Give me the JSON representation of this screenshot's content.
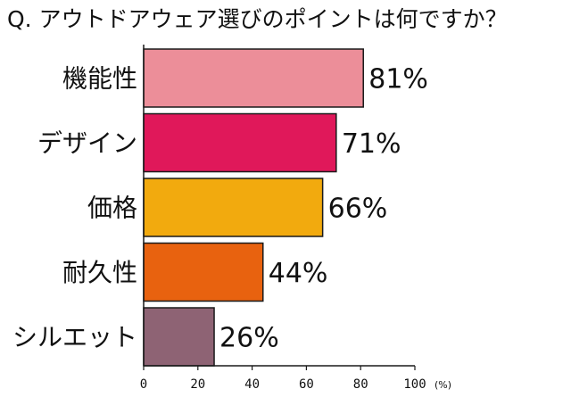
{
  "title": "Q. アウトドアウェア選びのポイントは何ですか？",
  "chart_data": {
    "type": "bar",
    "orientation": "horizontal",
    "categories": [
      "機能性",
      "デザイン",
      "価格",
      "耐久性",
      "シルエット"
    ],
    "values": [
      81,
      71,
      66,
      44,
      26
    ],
    "value_labels": [
      "81%",
      "71%",
      "66%",
      "44%",
      "26%"
    ],
    "colors": [
      "#ec8e99",
      "#e0185a",
      "#f2aa0e",
      "#e8620f",
      "#8e6374"
    ],
    "xlim": [
      0,
      100
    ],
    "xticks": [
      0,
      20,
      40,
      60,
      80,
      100
    ],
    "xtick_labels": [
      "0",
      "20",
      "40",
      "60",
      "80",
      "100"
    ],
    "unit": "(%)",
    "grid": false,
    "legend": "none"
  }
}
